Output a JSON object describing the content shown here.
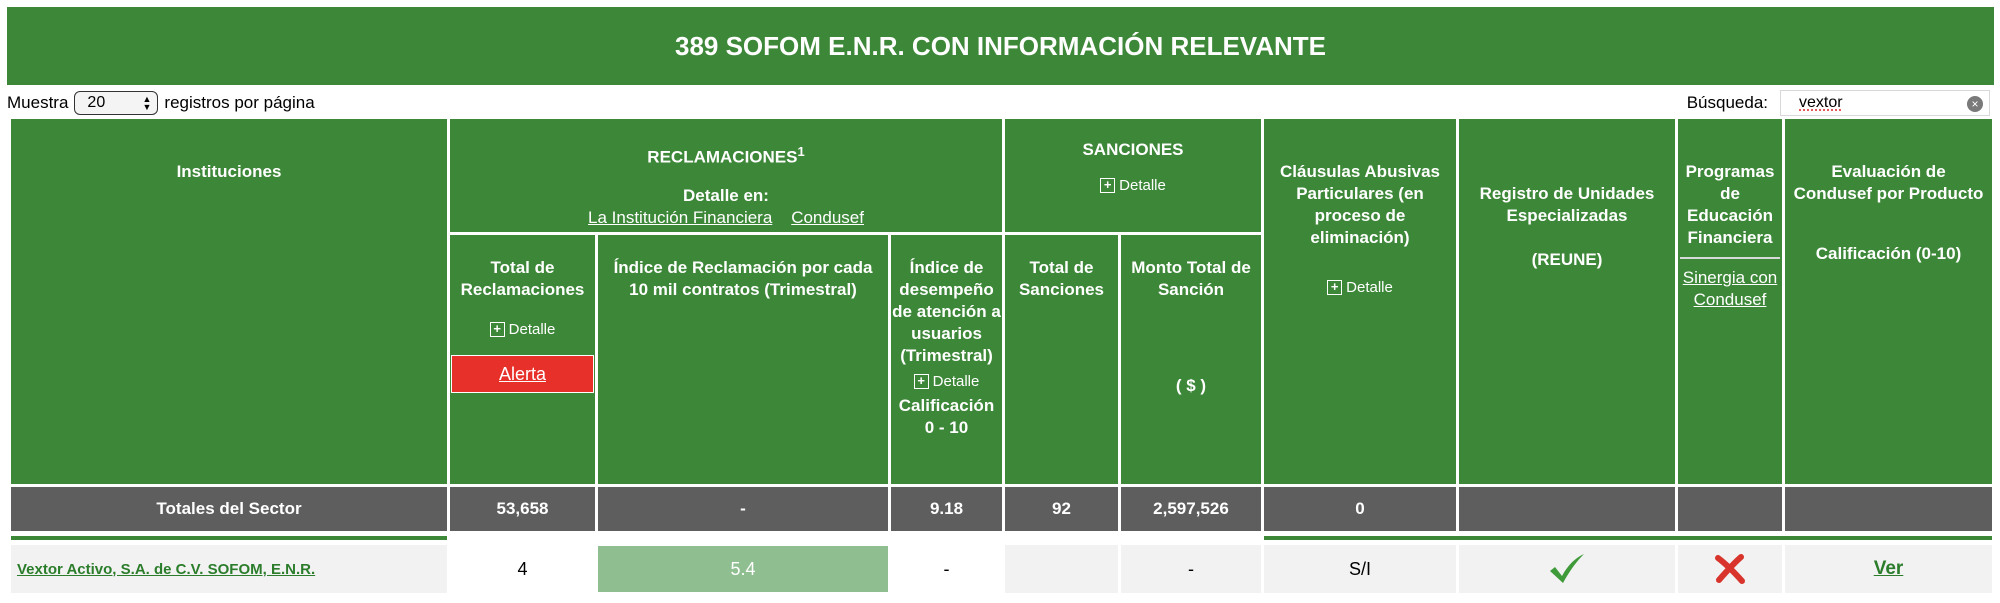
{
  "title": "389 SOFOM E.N.R. CON INFORMACIÓN RELEVANTE",
  "controls": {
    "show_label": "Muestra",
    "page_size": "20",
    "per_page_label": "registros por página",
    "search_label": "Búsqueda:",
    "search_value": "vextor"
  },
  "header": {
    "instituciones": "Instituciones",
    "reclamaciones": "RECLAMACIONES",
    "reclamaciones_sup": "1",
    "detalle_en": "Detalle en:",
    "link_institucion": "La Institución Financiera",
    "link_condusef": "Condusef",
    "sanciones": "SANCIONES",
    "detalle": "Detalle",
    "clausulas": "Cláusulas Abusivas Particulares (en proceso de eliminación)",
    "reune_title": "Registro de Unidades Especializadas",
    "reune_abbr": "(REUNE)",
    "programas": "Programas de Educación Financiera",
    "sinergia": "Sinergia con Condusef",
    "evaluacion": "Evaluación de Condusef por Producto",
    "calificacion_0_10": "Calificación (0-10)",
    "total_reclamaciones": "Total de Reclamaciones",
    "alerta": "Alerta",
    "indice_reclamacion": "Índice de Reclamación por cada 10 mil contratos (Trimestral)",
    "indice_desempeno": "Índice de desempeño de atención a usuarios (Trimestral)",
    "calificacion_label": "Calificación",
    "calificacion_range": "0 - 10",
    "total_sanciones": "Total de Sanciones",
    "monto_total": "Monto Total de Sanción",
    "currency": "( $ )"
  },
  "totals": {
    "label": "Totales del Sector",
    "total_reclamaciones": "53,658",
    "indice_reclamacion": "-",
    "indice_desempeno": "9.18",
    "total_sanciones": "92",
    "monto_total": "2,597,526",
    "clausulas": "0"
  },
  "rows": [
    {
      "institucion": "Vextor Activo, S.A. de C.V. SOFOM, E.N.R.",
      "total_reclamaciones": "4",
      "indice_reclamacion": "5.4",
      "indice_desempeno": "-",
      "monto_total": "-",
      "clausulas": "S/I",
      "reune_icon": "check-icon",
      "programas_icon": "cross-icon",
      "evaluacion": "Ver"
    }
  ],
  "colors": {
    "header_green": "#3d8738",
    "totals_gray": "#5e5e5e",
    "alert_red": "#e8302a",
    "index_green": "#8fbf91",
    "check_green": "#3f9a3a",
    "cross_red": "#d8342c"
  }
}
